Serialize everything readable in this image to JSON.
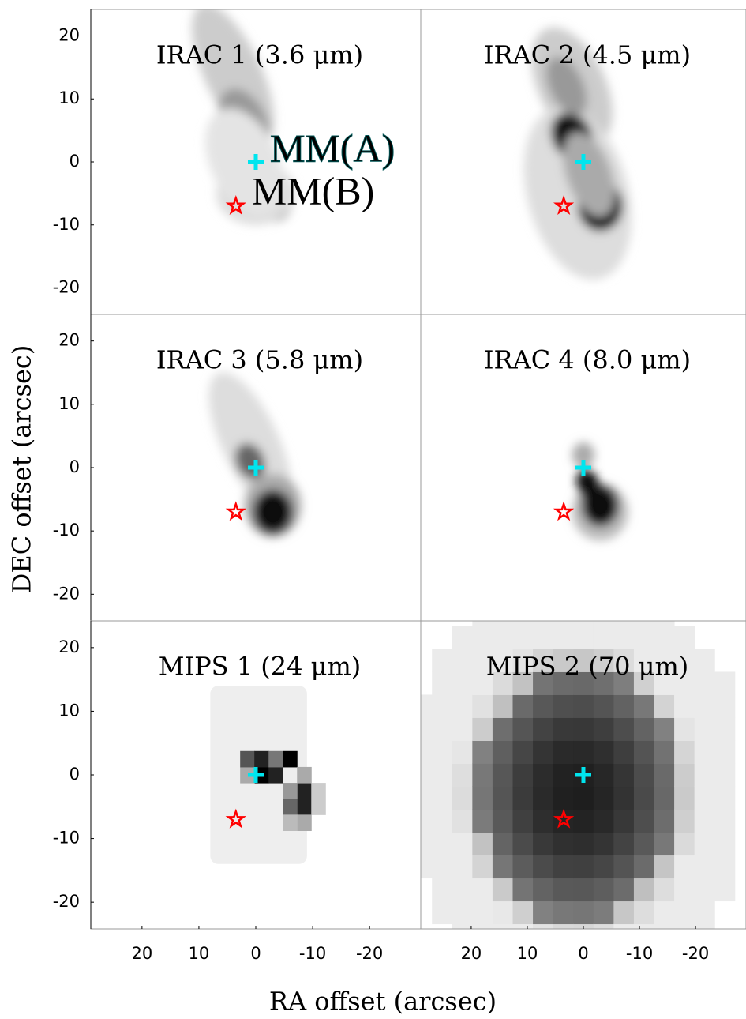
{
  "figure": {
    "xlabel": "RA offset (arcsec)",
    "ylabel": "DEC offset (arcsec)"
  },
  "chart_data": [
    {
      "type": "scatter",
      "title": "IRAC 1 (3.6 μm)",
      "xlim": [
        29,
        -29
      ],
      "ylim": [
        -24.2,
        24.2
      ],
      "yticks": [
        20,
        10,
        0,
        -10,
        -20
      ],
      "series": [
        {
          "name": "MM(A)",
          "color": "#00e5ee",
          "marker": "cross",
          "x": [
            0
          ],
          "values": [
            0
          ]
        },
        {
          "name": "MM(B)",
          "color": "#ff0000",
          "marker": "star",
          "x": [
            3.5
          ],
          "values": [
            -7
          ]
        }
      ]
    },
    {
      "type": "scatter",
      "title": "IRAC 2 (4.5 μm)",
      "xlim": [
        29,
        -29
      ],
      "ylim": [
        -24.2,
        24.2
      ],
      "series": [
        {
          "color": "#00e5ee",
          "marker": "cross",
          "x": [
            0
          ],
          "values": [
            0
          ]
        },
        {
          "color": "#ff0000",
          "marker": "star",
          "x": [
            3.5
          ],
          "values": [
            -7
          ]
        }
      ]
    },
    {
      "type": "scatter",
      "title": "IRAC 3 (5.8 μm)",
      "xlim": [
        29,
        -29
      ],
      "ylim": [
        -24.2,
        24.2
      ],
      "yticks": [
        20,
        10,
        0,
        -10,
        -20
      ],
      "series": [
        {
          "color": "#00e5ee",
          "marker": "cross",
          "x": [
            0
          ],
          "values": [
            0
          ]
        },
        {
          "color": "#ff0000",
          "marker": "star",
          "x": [
            3.5
          ],
          "values": [
            -7
          ]
        }
      ]
    },
    {
      "type": "scatter",
      "title": "IRAC 4 (8.0 μm)",
      "xlim": [
        29,
        -29
      ],
      "ylim": [
        -24.2,
        24.2
      ],
      "series": [
        {
          "color": "#00e5ee",
          "marker": "cross",
          "x": [
            0
          ],
          "values": [
            0
          ]
        },
        {
          "color": "#ff0000",
          "marker": "star",
          "x": [
            3.5
          ],
          "values": [
            -7
          ]
        }
      ]
    },
    {
      "type": "scatter",
      "title": "MIPS 1 (24 μm)",
      "xlim": [
        29,
        -29
      ],
      "ylim": [
        -24.2,
        24.2
      ],
      "xticks": [
        20,
        10,
        0,
        -10,
        -20
      ],
      "yticks": [
        20,
        10,
        0,
        -10,
        -20
      ],
      "series": [
        {
          "color": "#00e5ee",
          "marker": "cross",
          "x": [
            0
          ],
          "values": [
            0
          ]
        },
        {
          "color": "#ff0000",
          "marker": "star",
          "x": [
            3.5
          ],
          "values": [
            -7
          ]
        }
      ]
    },
    {
      "type": "scatter",
      "title": "MIPS 2 (70 μm)",
      "xlim": [
        29,
        -29
      ],
      "ylim": [
        -24.2,
        24.2
      ],
      "xticks": [
        20,
        10,
        0,
        -10,
        -20
      ],
      "series": [
        {
          "color": "#00e5ee",
          "marker": "cross",
          "x": [
            0
          ],
          "values": [
            0
          ]
        },
        {
          "color": "#ff0000",
          "marker": "star",
          "x": [
            3.5
          ],
          "values": [
            -7
          ]
        }
      ]
    }
  ]
}
